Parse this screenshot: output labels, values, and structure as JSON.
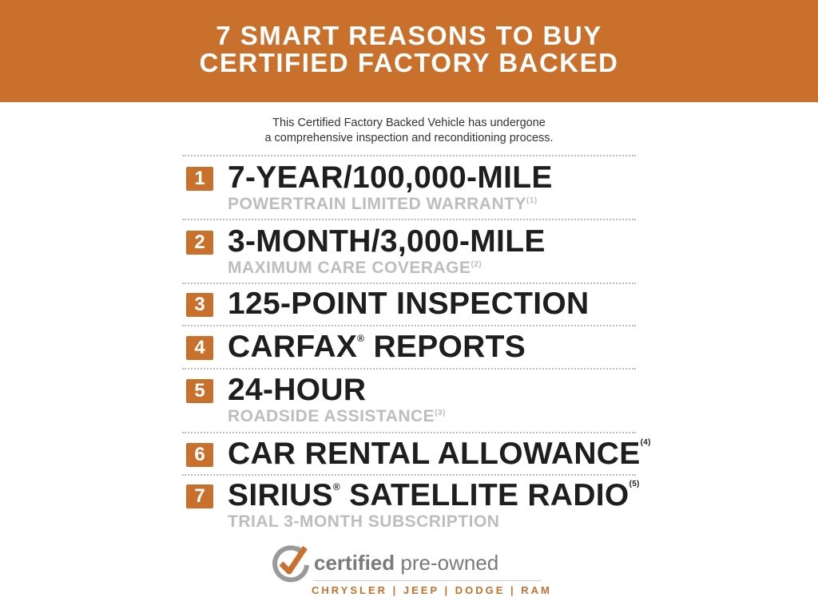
{
  "header": {
    "line1": "7 SMART REASONS TO BUY",
    "line2": "CERTIFIED FACTORY BACKED",
    "color": "#c8702c"
  },
  "intro": {
    "line1": "This Certified Factory Backed Vehicle has undergone",
    "line2": "a comprehensive inspection and reconditioning process."
  },
  "items": [
    {
      "num": "1",
      "title": "7-YEAR/100,000-MILE",
      "title_sup": "",
      "sub": "POWERTRAIN LIMITED WARRANTY",
      "sup": "(1)"
    },
    {
      "num": "2",
      "title": "3-MONTH/3,000-MILE",
      "title_sup": "",
      "sub": "MAXIMUM CARE COVERAGE",
      "sup": "(2)"
    },
    {
      "num": "3",
      "title": "125-POINT INSPECTION",
      "title_sup": "",
      "sub": "",
      "sup": ""
    },
    {
      "num": "4",
      "title": "CARFAX",
      "reg": "®",
      "title_rest": " REPORTS",
      "sub": "",
      "sup": ""
    },
    {
      "num": "5",
      "title": "24-HOUR",
      "title_sup": "",
      "sub": "ROADSIDE ASSISTANCE",
      "sup": "(3)"
    },
    {
      "num": "6",
      "title": "CAR RENTAL ALLOWANCE",
      "title_sup": "(4)",
      "sub": "",
      "sup": ""
    },
    {
      "num": "7",
      "title": "SIRIUS",
      "reg": "®",
      "title_rest": " SATELLITE RADIO",
      "title_sup": "(5)",
      "sub": "TRIAL 3-MONTH SUBSCRIPTION",
      "sup": ""
    }
  ],
  "logo": {
    "word1": "certified",
    "word2": "pre-owned",
    "brands": "CHRYSLER | JEEP | DODGE | RAM",
    "icon": "checkmark-circle-arrow-icon"
  }
}
